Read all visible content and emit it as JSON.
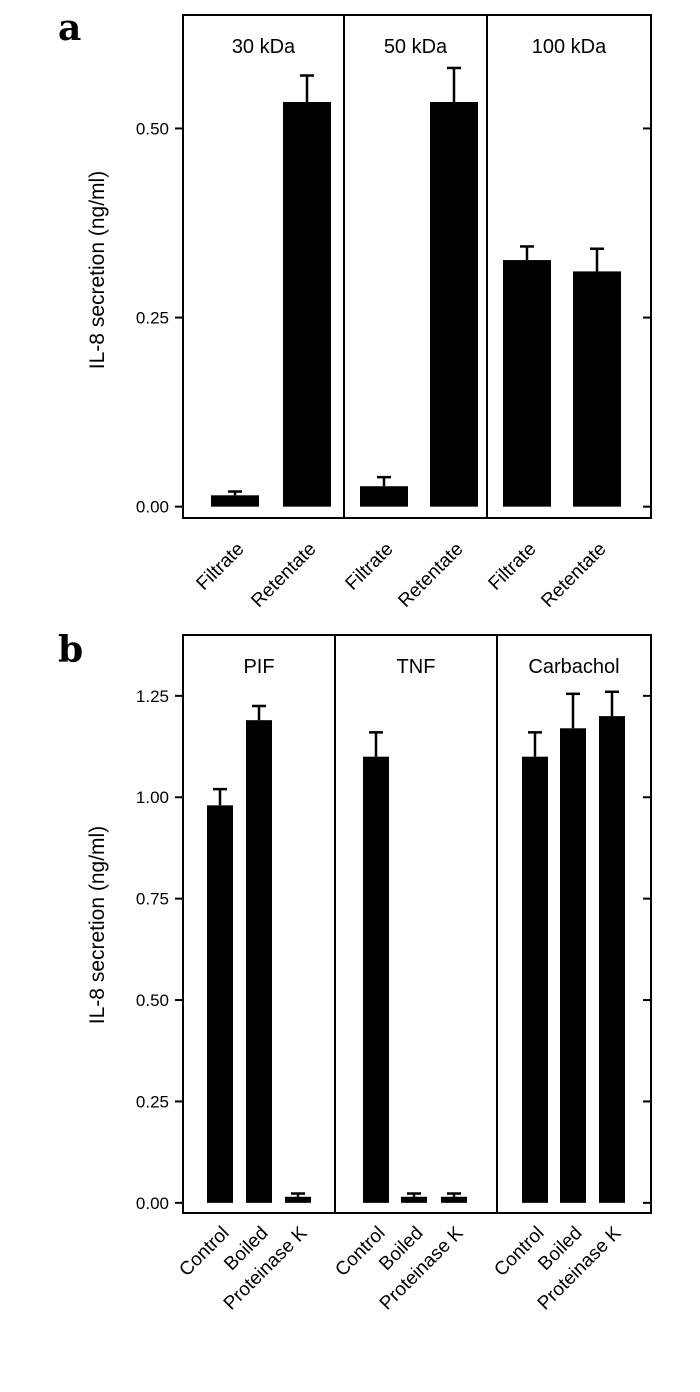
{
  "chart_data": [
    {
      "panel_label": "a",
      "type": "bar",
      "ylabel": "IL-8 secretion (ng/ml)",
      "ylim": [
        -0.015,
        0.65
      ],
      "yticks": [
        "0.00",
        "0.25",
        "0.50"
      ],
      "grid": false,
      "bar_color": "#000000",
      "groups": [
        {
          "label": "30 kDa",
          "categories": [
            "Filtrate",
            "Retentate"
          ],
          "values": [
            0.015,
            0.535
          ],
          "errors": [
            0.005,
            0.035
          ]
        },
        {
          "label": "50 kDa",
          "categories": [
            "Filtrate",
            "Retentate"
          ],
          "values": [
            0.027,
            0.535
          ],
          "errors": [
            0.012,
            0.045
          ]
        },
        {
          "label": "100 kDa",
          "categories": [
            "Filtrate",
            "Retentate"
          ],
          "values": [
            0.326,
            0.311
          ],
          "errors": [
            0.018,
            0.03
          ]
        }
      ]
    },
    {
      "panel_label": "b",
      "type": "bar",
      "ylabel": "IL-8 secretion (ng/ml)",
      "ylim": [
        -0.025,
        1.4
      ],
      "yticks": [
        "0.00",
        "0.25",
        "0.50",
        "0.75",
        "1.00",
        "1.25"
      ],
      "grid": false,
      "bar_color": "#000000",
      "groups": [
        {
          "label": "PIF",
          "categories": [
            "Control",
            "Boiled",
            "Proteinase K"
          ],
          "values": [
            0.98,
            1.19,
            0.015
          ],
          "errors": [
            0.04,
            0.035,
            0.008
          ]
        },
        {
          "label": "TNF",
          "categories": [
            "Control",
            "Boiled",
            "Proteinase K"
          ],
          "values": [
            1.1,
            0.015,
            0.015
          ],
          "errors": [
            0.06,
            0.008,
            0.008
          ]
        },
        {
          "label": "Carbachol",
          "categories": [
            "Control",
            "Boiled",
            "Proteinase K"
          ],
          "values": [
            1.1,
            1.17,
            1.2
          ],
          "errors": [
            0.06,
            0.085,
            0.06
          ]
        }
      ]
    }
  ]
}
